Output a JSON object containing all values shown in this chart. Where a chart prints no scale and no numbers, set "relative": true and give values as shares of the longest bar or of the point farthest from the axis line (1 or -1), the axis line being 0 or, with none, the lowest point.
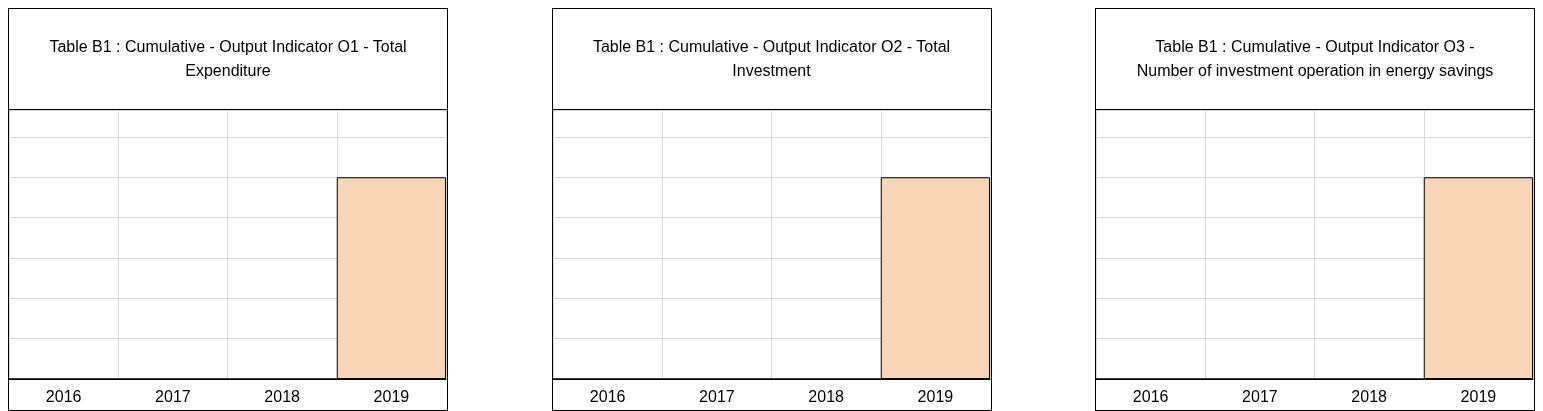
{
  "chart_data": [
    {
      "type": "bar",
      "title": "Table B1 : Cumulative - Output Indicator O1 - Total Expenditure",
      "categories": [
        "2016",
        "2017",
        "2018",
        "2019"
      ],
      "values": [
        0,
        0,
        0,
        1
      ],
      "color": "#f8d5b5",
      "relative": true,
      "grid": true
    },
    {
      "type": "bar",
      "title": "Table B1 : Cumulative - Output Indicator O2 - Total Investment",
      "categories": [
        "2016",
        "2017",
        "2018",
        "2019"
      ],
      "values": [
        0,
        0,
        0,
        1
      ],
      "color": "#f8d5b5",
      "relative": true,
      "grid": true
    },
    {
      "type": "bar",
      "title": "Table B1 : Cumulative - Output Indicator O3 - Number of investment operation in energy savings",
      "categories": [
        "2016",
        "2017",
        "2018",
        "2019"
      ],
      "values": [
        0,
        0,
        0,
        1
      ],
      "color": "#f8d5b5",
      "relative": true,
      "grid": true
    }
  ]
}
